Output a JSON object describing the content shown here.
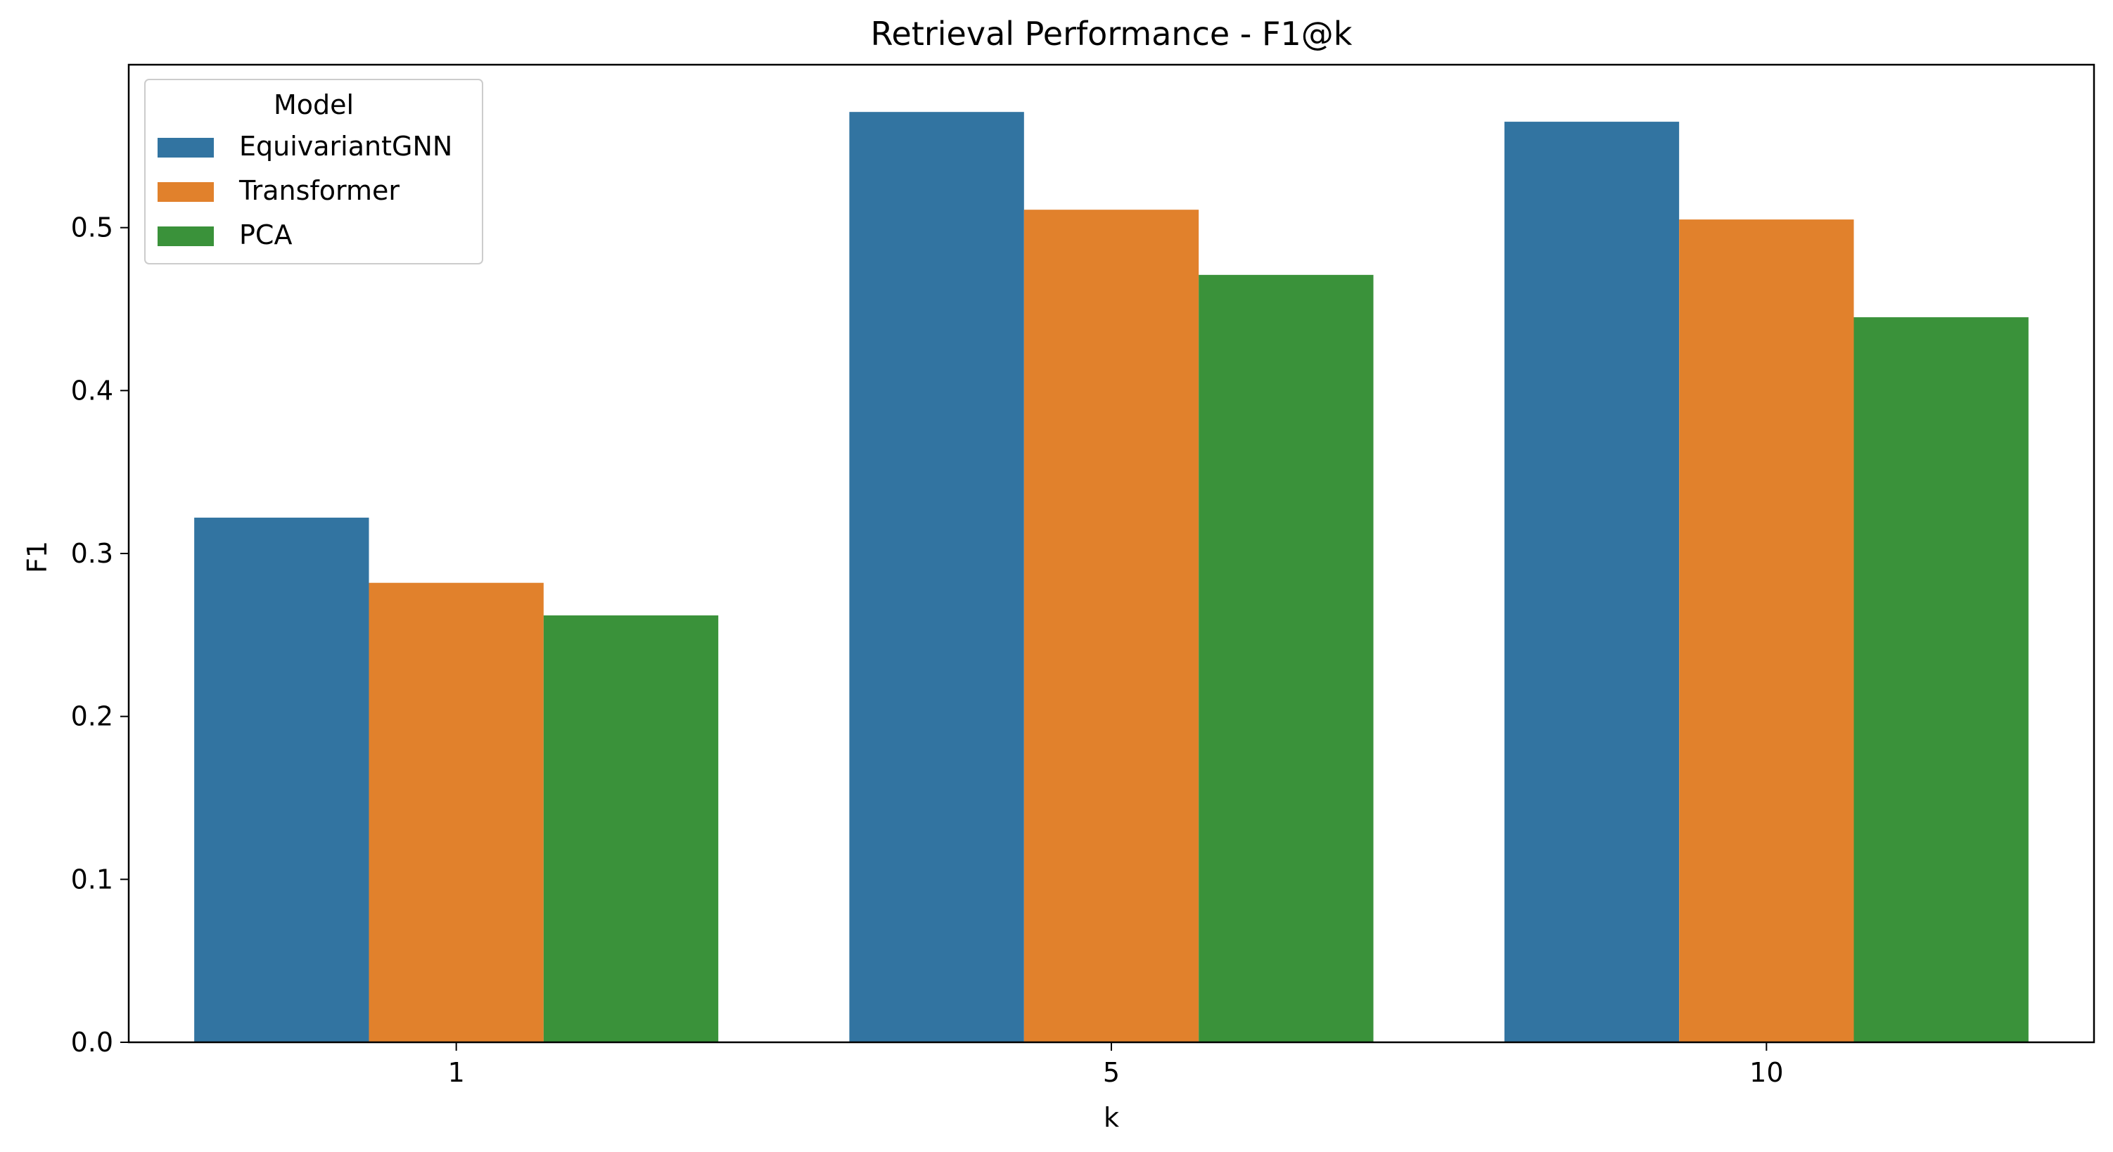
{
  "chart_data": {
    "type": "bar",
    "title": "Retrieval Performance - F1@k",
    "xlabel": "k",
    "ylabel": "F1",
    "categories": [
      "1",
      "5",
      "10"
    ],
    "series": [
      {
        "name": "EquivariantGNN",
        "values": [
          0.322,
          0.571,
          0.565
        ],
        "color": "#3274a1"
      },
      {
        "name": "Transformer",
        "values": [
          0.282,
          0.511,
          0.505
        ],
        "color": "#e1812c"
      },
      {
        "name": "PCA",
        "values": [
          0.262,
          0.471,
          0.445
        ],
        "color": "#3a923a"
      }
    ],
    "ylim": [
      0,
      0.6
    ],
    "yticks": [
      0.0,
      0.1,
      0.2,
      0.3,
      0.4,
      0.5
    ],
    "ytick_labels": [
      "0.0",
      "0.1",
      "0.2",
      "0.3",
      "0.4",
      "0.5"
    ],
    "legend": {
      "title": "Model",
      "placement": "top-left"
    },
    "grid": false
  }
}
